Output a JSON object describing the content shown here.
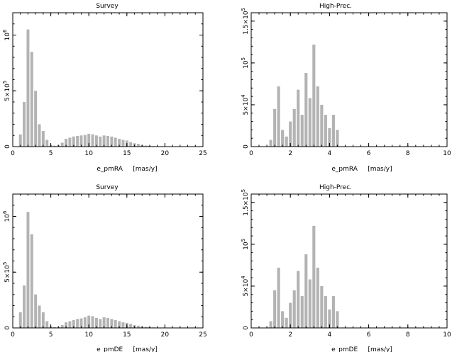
{
  "chart_data": [
    {
      "type": "bar",
      "title": "Survey",
      "xlabel": "e_pmRA     [mas/y]",
      "xlim": [
        0,
        25
      ],
      "ylim": [
        0,
        1200000
      ],
      "x_ticks": [
        {
          "value": 0,
          "label": "0"
        },
        {
          "value": 5,
          "label": "5"
        },
        {
          "value": 10,
          "label": "10"
        },
        {
          "value": 15,
          "label": "15"
        },
        {
          "value": 20,
          "label": "20"
        },
        {
          "value": 25,
          "label": "25"
        }
      ],
      "y_ticks": [
        {
          "value": 0,
          "label": "0"
        },
        {
          "value": 500000,
          "label": "5×10",
          "exp": "5"
        },
        {
          "value": 1000000,
          "label": "10",
          "exp": "6"
        }
      ],
      "bin_width": 0.5,
      "x": [
        1,
        1.5,
        2,
        2.5,
        3,
        3.5,
        4,
        4.5,
        5,
        5.5,
        6,
        6.5,
        7,
        7.5,
        8,
        8.5,
        9,
        9.5,
        10,
        10.5,
        11,
        11.5,
        12,
        12.5,
        13,
        13.5,
        14,
        14.5,
        15,
        15.5,
        16,
        16.5,
        17,
        17.5,
        18,
        18.5,
        19,
        19.5,
        20
      ],
      "values": [
        110000,
        400000,
        1050000,
        850000,
        500000,
        200000,
        140000,
        60000,
        15000,
        8000,
        15000,
        35000,
        70000,
        80000,
        90000,
        95000,
        100000,
        105000,
        115000,
        110000,
        100000,
        90000,
        100000,
        95000,
        90000,
        80000,
        70000,
        60000,
        55000,
        40000,
        30000,
        25000,
        15000,
        10000,
        8000,
        5000,
        3000,
        2000,
        1000
      ]
    },
    {
      "type": "bar",
      "title": "High-Prec.",
      "xlabel": "e_pmRA     [mas/y]",
      "xlim": [
        0,
        10
      ],
      "ylim": [
        0,
        160000
      ],
      "x_ticks": [
        {
          "value": 0,
          "label": "0"
        },
        {
          "value": 2,
          "label": "2"
        },
        {
          "value": 4,
          "label": "4"
        },
        {
          "value": 6,
          "label": "6"
        },
        {
          "value": 8,
          "label": "8"
        },
        {
          "value": 10,
          "label": "10"
        }
      ],
      "y_ticks": [
        {
          "value": 0,
          "label": "0"
        },
        {
          "value": 50000,
          "label": "5×10",
          "exp": "4"
        },
        {
          "value": 100000,
          "label": "10",
          "exp": "5"
        },
        {
          "value": 150000,
          "label": "1.5×10",
          "exp": "5"
        }
      ],
      "bin_width": 0.2,
      "x": [
        1.0,
        1.2,
        1.4,
        1.6,
        1.8,
        2.0,
        2.2,
        2.4,
        2.6,
        2.8,
        3.0,
        3.2,
        3.4,
        3.6,
        3.8,
        4.0,
        4.2,
        4.4
      ],
      "values": [
        8000,
        45000,
        72000,
        20000,
        12000,
        30000,
        45000,
        68000,
        38000,
        88000,
        58000,
        122000,
        72000,
        50000,
        38000,
        22000,
        38000,
        20000
      ]
    },
    {
      "type": "bar",
      "title": "Survey",
      "xlabel": "e_pmDE     [mas/y]",
      "xlim": [
        0,
        25
      ],
      "ylim": [
        0,
        1200000
      ],
      "x_ticks": [
        {
          "value": 0,
          "label": "0"
        },
        {
          "value": 5,
          "label": "5"
        },
        {
          "value": 10,
          "label": "10"
        },
        {
          "value": 15,
          "label": "15"
        },
        {
          "value": 20,
          "label": "20"
        },
        {
          "value": 25,
          "label": "25"
        }
      ],
      "y_ticks": [
        {
          "value": 0,
          "label": "0"
        },
        {
          "value": 500000,
          "label": "5×10",
          "exp": "5"
        },
        {
          "value": 1000000,
          "label": "10",
          "exp": "6"
        }
      ],
      "bin_width": 0.5,
      "x": [
        1,
        1.5,
        2,
        2.5,
        3,
        3.5,
        4,
        4.5,
        5,
        5.5,
        6,
        6.5,
        7,
        7.5,
        8,
        8.5,
        9,
        9.5,
        10,
        10.5,
        11,
        11.5,
        12,
        12.5,
        13,
        13.5,
        14,
        14.5,
        15,
        15.5,
        16,
        16.5,
        17,
        17.5,
        18,
        18.5,
        19,
        19.5,
        20
      ],
      "values": [
        140000,
        380000,
        1040000,
        840000,
        300000,
        200000,
        140000,
        60000,
        15000,
        8000,
        10000,
        25000,
        50000,
        60000,
        70000,
        80000,
        85000,
        95000,
        110000,
        105000,
        90000,
        80000,
        95000,
        90000,
        80000,
        70000,
        60000,
        50000,
        45000,
        35000,
        25000,
        20000,
        12000,
        10000,
        8000,
        5000,
        3000,
        2000,
        1000
      ]
    },
    {
      "type": "bar",
      "title": "High-Prec.",
      "xlabel": "e_pmDE     [mas/y]",
      "xlim": [
        0,
        10
      ],
      "ylim": [
        0,
        160000
      ],
      "x_ticks": [
        {
          "value": 0,
          "label": "0"
        },
        {
          "value": 2,
          "label": "2"
        },
        {
          "value": 4,
          "label": "4"
        },
        {
          "value": 6,
          "label": "6"
        },
        {
          "value": 8,
          "label": "8"
        },
        {
          "value": 10,
          "label": "10"
        }
      ],
      "y_ticks": [
        {
          "value": 0,
          "label": "0"
        },
        {
          "value": 50000,
          "label": "5×10",
          "exp": "4"
        },
        {
          "value": 100000,
          "label": "10",
          "exp": "5"
        },
        {
          "value": 150000,
          "label": "1.5×10",
          "exp": "5"
        }
      ],
      "bin_width": 0.2,
      "x": [
        1.0,
        1.2,
        1.4,
        1.6,
        1.8,
        2.0,
        2.2,
        2.4,
        2.6,
        2.8,
        3.0,
        3.2,
        3.4,
        3.6,
        3.8,
        4.0,
        4.2,
        4.4
      ],
      "values": [
        8000,
        45000,
        72000,
        20000,
        12000,
        30000,
        45000,
        68000,
        38000,
        88000,
        58000,
        122000,
        72000,
        50000,
        38000,
        22000,
        38000,
        20000
      ]
    }
  ]
}
